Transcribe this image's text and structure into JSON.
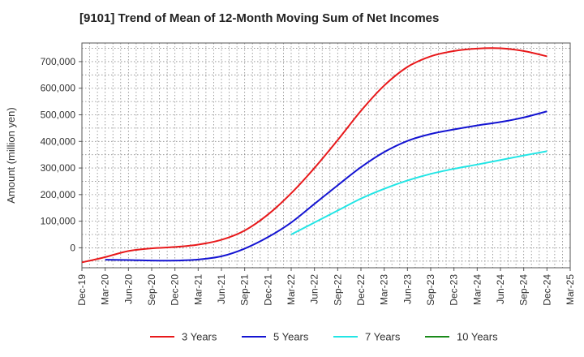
{
  "chart_data": {
    "type": "line",
    "title": "[9101]  Trend of Mean of 12-Month Moving Sum of Net Incomes",
    "xlabel": "",
    "ylabel": "Amount (million yen)",
    "x_tick_labels": [
      "Dec-19",
      "Mar-20",
      "Jun-20",
      "Sep-20",
      "Dec-20",
      "Mar-21",
      "Jun-21",
      "Sep-21",
      "Dec-21",
      "Mar-22",
      "Jun-22",
      "Sep-22",
      "Dec-22",
      "Mar-23",
      "Jun-23",
      "Sep-23",
      "Dec-23",
      "Mar-24",
      "Jun-24",
      "Sep-24",
      "Dec-24",
      "Mar-25"
    ],
    "y_tick_labels": [
      "0",
      "100,000",
      "200,000",
      "300,000",
      "400,000",
      "500,000",
      "600,000",
      "700,000"
    ],
    "y_ticks": [
      0,
      100000,
      200000,
      300000,
      400000,
      500000,
      600000,
      700000
    ],
    "ylim": [
      -75000,
      770000
    ],
    "grid": true,
    "legend_position": "bottom",
    "series": [
      {
        "name": "3 Years",
        "color": "#e8191b",
        "x": [
          "Dec-19",
          "Mar-20",
          "Jun-20",
          "Sep-20",
          "Dec-20",
          "Mar-21",
          "Jun-21",
          "Sep-21",
          "Dec-21",
          "Mar-22",
          "Jun-22",
          "Sep-22",
          "Dec-22",
          "Mar-23",
          "Jun-23",
          "Sep-23",
          "Dec-23",
          "Mar-24",
          "Jun-24",
          "Sep-24",
          "Dec-24"
        ],
        "values": [
          -55000,
          -35000,
          -12000,
          -2000,
          3000,
          12000,
          30000,
          65000,
          125000,
          205000,
          300000,
          405000,
          515000,
          610000,
          680000,
          720000,
          740000,
          749000,
          750000,
          740000,
          720000
        ]
      },
      {
        "name": "5 Years",
        "color": "#1414d2",
        "x": [
          "Mar-20",
          "Jun-20",
          "Sep-20",
          "Dec-20",
          "Mar-21",
          "Jun-21",
          "Sep-21",
          "Dec-21",
          "Mar-22",
          "Jun-22",
          "Sep-22",
          "Dec-22",
          "Mar-23",
          "Jun-23",
          "Sep-23",
          "Dec-23",
          "Mar-24",
          "Jun-24",
          "Sep-24",
          "Dec-24"
        ],
        "values": [
          -45000,
          -46000,
          -48000,
          -48000,
          -44000,
          -32000,
          -3000,
          40000,
          95000,
          165000,
          235000,
          303000,
          360000,
          402000,
          428000,
          445000,
          460000,
          473000,
          490000,
          513000
        ]
      },
      {
        "name": "7 Years",
        "color": "#22e5e5",
        "x": [
          "Mar-22",
          "Jun-22",
          "Sep-22",
          "Dec-22",
          "Mar-23",
          "Jun-23",
          "Sep-23",
          "Dec-23",
          "Mar-24",
          "Jun-24",
          "Sep-24",
          "Dec-24"
        ],
        "values": [
          50000,
          95000,
          140000,
          185000,
          222000,
          253000,
          278000,
          297000,
          313000,
          330000,
          347000,
          363000
        ]
      },
      {
        "name": "10 Years",
        "color": "#1a8a1a",
        "x": [],
        "values": []
      }
    ]
  }
}
